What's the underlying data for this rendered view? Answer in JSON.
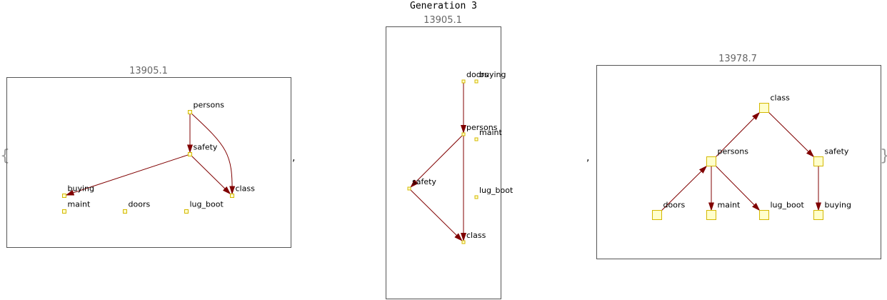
{
  "title": "Generation 3",
  "colors": {
    "edge": "#800000",
    "node_fill": "#ffffcc",
    "node_stroke": "#d4b800",
    "frame": "#555555",
    "score": "#666666",
    "bracket": "#999999"
  },
  "graphs": [
    {
      "score": "13905.1",
      "nodes": [
        {
          "id": "persons",
          "label": "persons"
        },
        {
          "id": "safety",
          "label": "safety"
        },
        {
          "id": "buying",
          "label": "buying"
        },
        {
          "id": "class",
          "label": "class"
        },
        {
          "id": "maint",
          "label": "maint"
        },
        {
          "id": "doors",
          "label": "doors"
        },
        {
          "id": "lug_boot",
          "label": "lug_boot"
        }
      ],
      "edges": [
        {
          "from": "persons",
          "to": "safety"
        },
        {
          "from": "persons",
          "to": "class"
        },
        {
          "from": "safety",
          "to": "buying"
        },
        {
          "from": "safety",
          "to": "class"
        }
      ]
    },
    {
      "score": "13905.1",
      "nodes": [
        {
          "id": "doors",
          "label": "doors"
        },
        {
          "id": "buying",
          "label": "buying"
        },
        {
          "id": "persons",
          "label": "persons"
        },
        {
          "id": "maint",
          "label": "maint"
        },
        {
          "id": "safety",
          "label": "safety"
        },
        {
          "id": "lug_boot",
          "label": "lug_boot"
        },
        {
          "id": "class",
          "label": "class"
        }
      ],
      "edges": [
        {
          "from": "doors",
          "to": "persons"
        },
        {
          "from": "persons",
          "to": "safety"
        },
        {
          "from": "persons",
          "to": "class"
        },
        {
          "from": "safety",
          "to": "class"
        }
      ]
    },
    {
      "score": "13978.7",
      "nodes": [
        {
          "id": "class",
          "label": "class"
        },
        {
          "id": "persons",
          "label": "persons"
        },
        {
          "id": "safety",
          "label": "safety"
        },
        {
          "id": "doors",
          "label": "doors"
        },
        {
          "id": "maint",
          "label": "maint"
        },
        {
          "id": "lug_boot",
          "label": "lug_boot"
        },
        {
          "id": "buying",
          "label": "buying"
        }
      ],
      "edges": [
        {
          "from": "persons",
          "to": "class"
        },
        {
          "from": "class",
          "to": "safety"
        },
        {
          "from": "doors",
          "to": "persons"
        },
        {
          "from": "persons",
          "to": "maint"
        },
        {
          "from": "persons",
          "to": "lug_boot"
        },
        {
          "from": "safety",
          "to": "buying"
        }
      ]
    }
  ],
  "separators": [
    ",",
    ","
  ],
  "brackets": {
    "open": "{",
    "close": "}"
  }
}
